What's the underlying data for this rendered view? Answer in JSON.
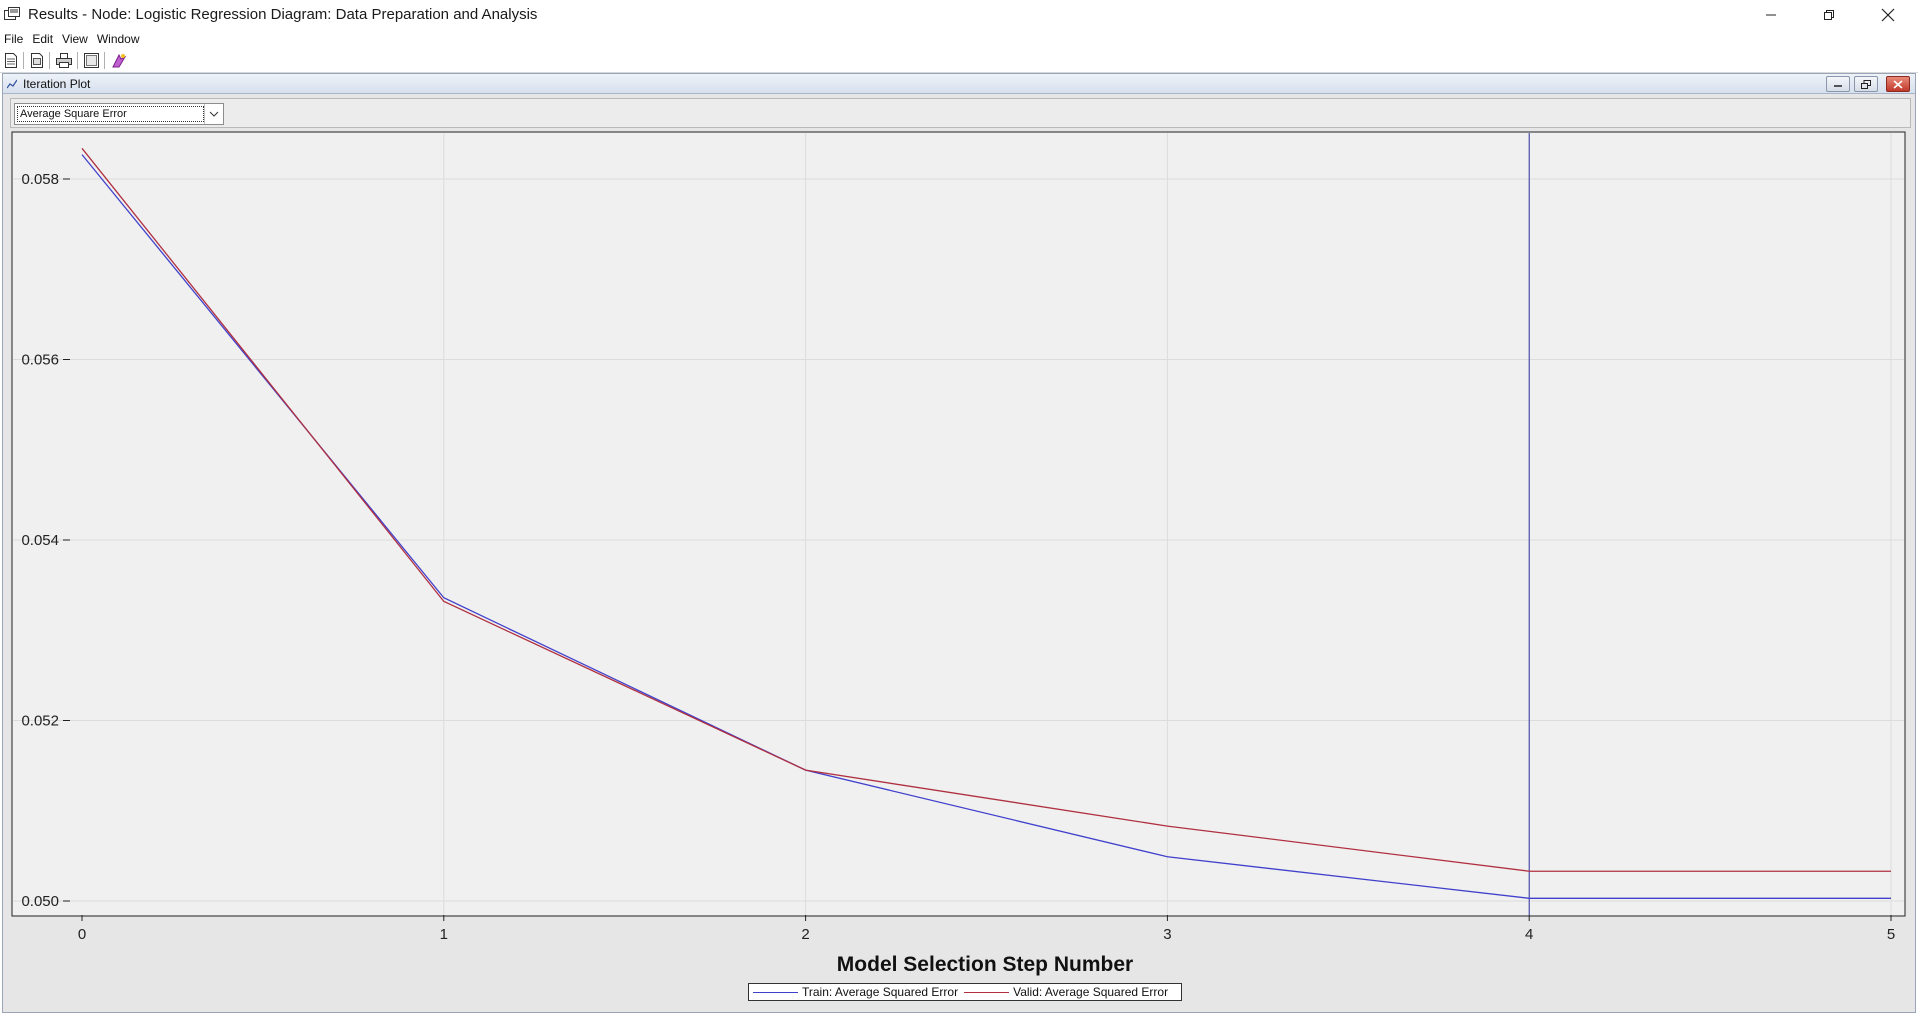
{
  "window": {
    "title": "Results - Node: Logistic Regression  Diagram: Data Preparation and Analysis"
  },
  "menu": [
    "File",
    "Edit",
    "View",
    "Window"
  ],
  "toolbar": {
    "icons": [
      "new-document-icon",
      "open-document-icon",
      "print-icon",
      "page-setup-icon",
      "run-wizard-icon"
    ]
  },
  "panel": {
    "title": "Iteration Plot",
    "statistic_select": {
      "value": "Average Square Error"
    }
  },
  "colors": {
    "train": "#4040cc",
    "valid": "#b03040",
    "selected_step_line": "#3030a0"
  },
  "chart_data": {
    "type": "line",
    "xlabel": "Model Selection Step Number",
    "ylabel": "",
    "x": [
      0,
      1,
      2,
      3,
      4,
      5
    ],
    "xlim": [
      0,
      5
    ],
    "ylim": [
      0.05,
      0.0585
    ],
    "x_ticks": [
      "0",
      "1",
      "2",
      "3",
      "4",
      "5"
    ],
    "y_ticks": [
      "0.050",
      "0.052",
      "0.054",
      "0.056",
      "0.058"
    ],
    "y_tick_values": [
      0.05,
      0.052,
      0.054,
      0.056,
      0.058
    ],
    "grid": true,
    "legend_position": "bottom",
    "selected_step": 4,
    "series": [
      {
        "name": "Train: Average Squared Error",
        "values": [
          0.05827,
          0.05336,
          0.05145,
          0.05049,
          0.05003,
          0.05003
        ]
      },
      {
        "name": "Valid: Average Squared Error",
        "values": [
          0.05834,
          0.05332,
          0.05145,
          0.05083,
          0.05033,
          0.05033
        ]
      }
    ]
  }
}
